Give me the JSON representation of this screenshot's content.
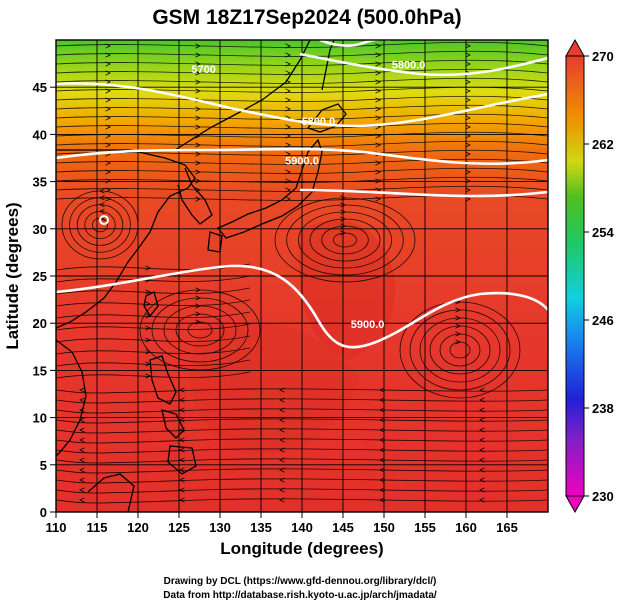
{
  "title": "GSM 18Z17Sep2024 (500.0hPa)",
  "x_axis": {
    "label": "Longitude (degrees)",
    "range": [
      110,
      170
    ],
    "ticks": [
      "110",
      "115",
      "120",
      "125",
      "130",
      "135",
      "140",
      "145",
      "150",
      "155",
      "160",
      "165"
    ]
  },
  "y_axis": {
    "label": "Latitude  (degrees)",
    "range": [
      0,
      50
    ],
    "ticks": [
      "0",
      "5",
      "10",
      "15",
      "20",
      "25",
      "30",
      "35",
      "40",
      "45"
    ]
  },
  "colorbar": {
    "labels": [
      "230",
      "238",
      "246",
      "254",
      "262",
      "270"
    ],
    "range": [
      230,
      270
    ]
  },
  "contour_labels": [
    {
      "text": "5700",
      "lon": 128,
      "lat": 46.5
    },
    {
      "text": "5800.0",
      "lon": 153,
      "lat": 47
    },
    {
      "text": "5800.0",
      "lon": 142,
      "lat": 41
    },
    {
      "text": "5900.0",
      "lon": 140,
      "lat": 36.8
    },
    {
      "text": "5900.0",
      "lon": 148,
      "lat": 19.5
    }
  ],
  "footer": {
    "line1": "Drawing by DCL (https://www.gfd-dennou.org/library/dcl/)",
    "line2": "Data from http://database.rish.kyoto-u.ac.jp/arch/jmadata/"
  },
  "colors": {
    "warm": "#e8342c",
    "gold": "#f0a000",
    "green": "#46c024",
    "contour": "#ffffff",
    "coast": "#000000"
  }
}
